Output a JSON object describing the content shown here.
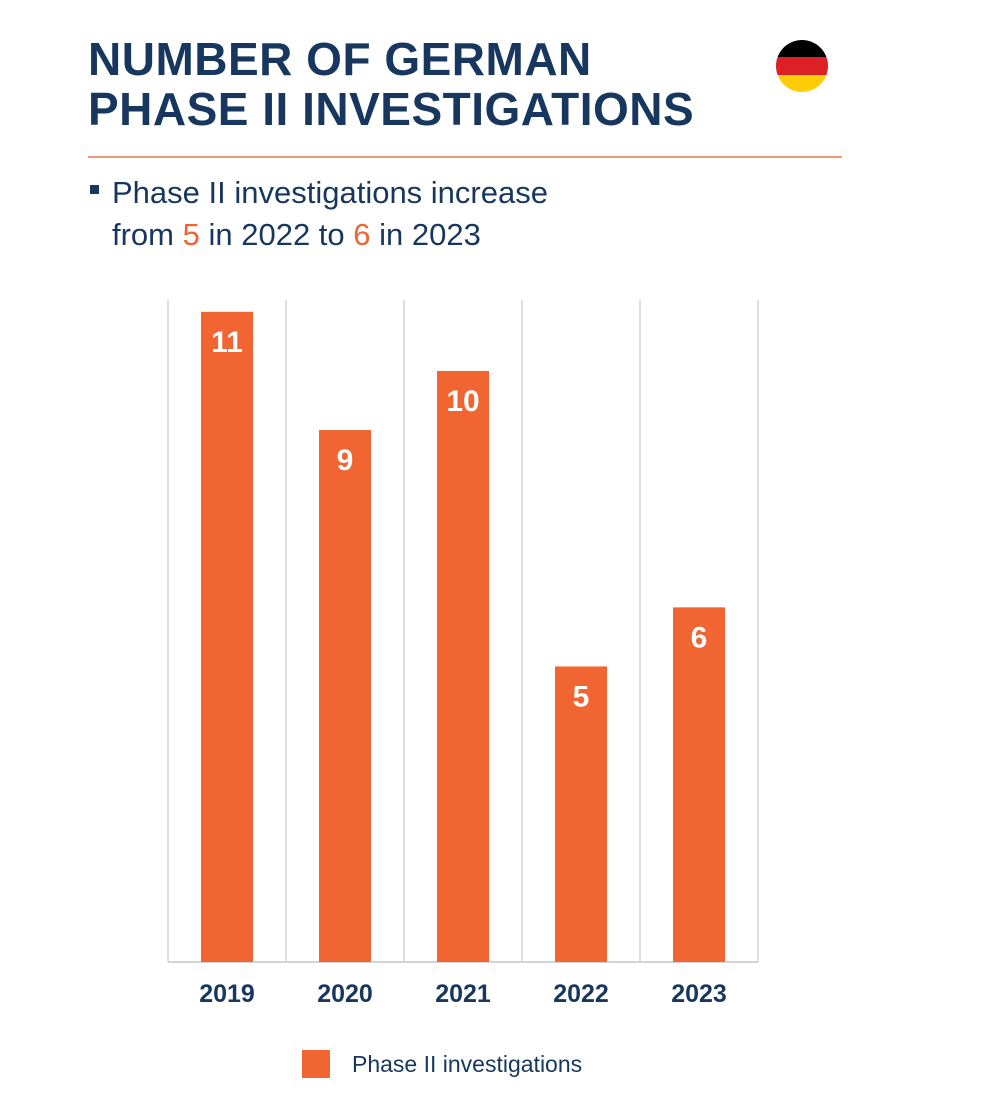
{
  "header": {
    "title_lines": [
      "NUMBER OF GERMAN",
      "PHASE II INVESTIGATIONS"
    ],
    "flag_colors": [
      "#000000",
      "#dd1f26",
      "#ffcd05"
    ]
  },
  "summary": {
    "line1": "Phase II investigations increase",
    "line2_a": "from ",
    "line2_v1": "5",
    "line2_b": " in 2022 to ",
    "line2_v2": "6",
    "line2_c": " in 2023"
  },
  "colors": {
    "bar": "#f06532",
    "title": "#17375e",
    "gridline": "#d4d4d4",
    "highlight": "#ee6533"
  },
  "chart_data": {
    "type": "bar",
    "title": "",
    "xlabel": "",
    "ylabel": "",
    "categories": [
      "2019",
      "2020",
      "2021",
      "2022",
      "2023"
    ],
    "series": [
      {
        "name": "Phase II investigations",
        "values": [
          11,
          9,
          10,
          5,
          6
        ]
      }
    ],
    "ylim": [
      0,
      11.2
    ],
    "grid": "vertical separators",
    "data_labels": "inside-top",
    "legend": {
      "position": "bottom-center",
      "entries": [
        "Phase II investigations"
      ]
    }
  }
}
